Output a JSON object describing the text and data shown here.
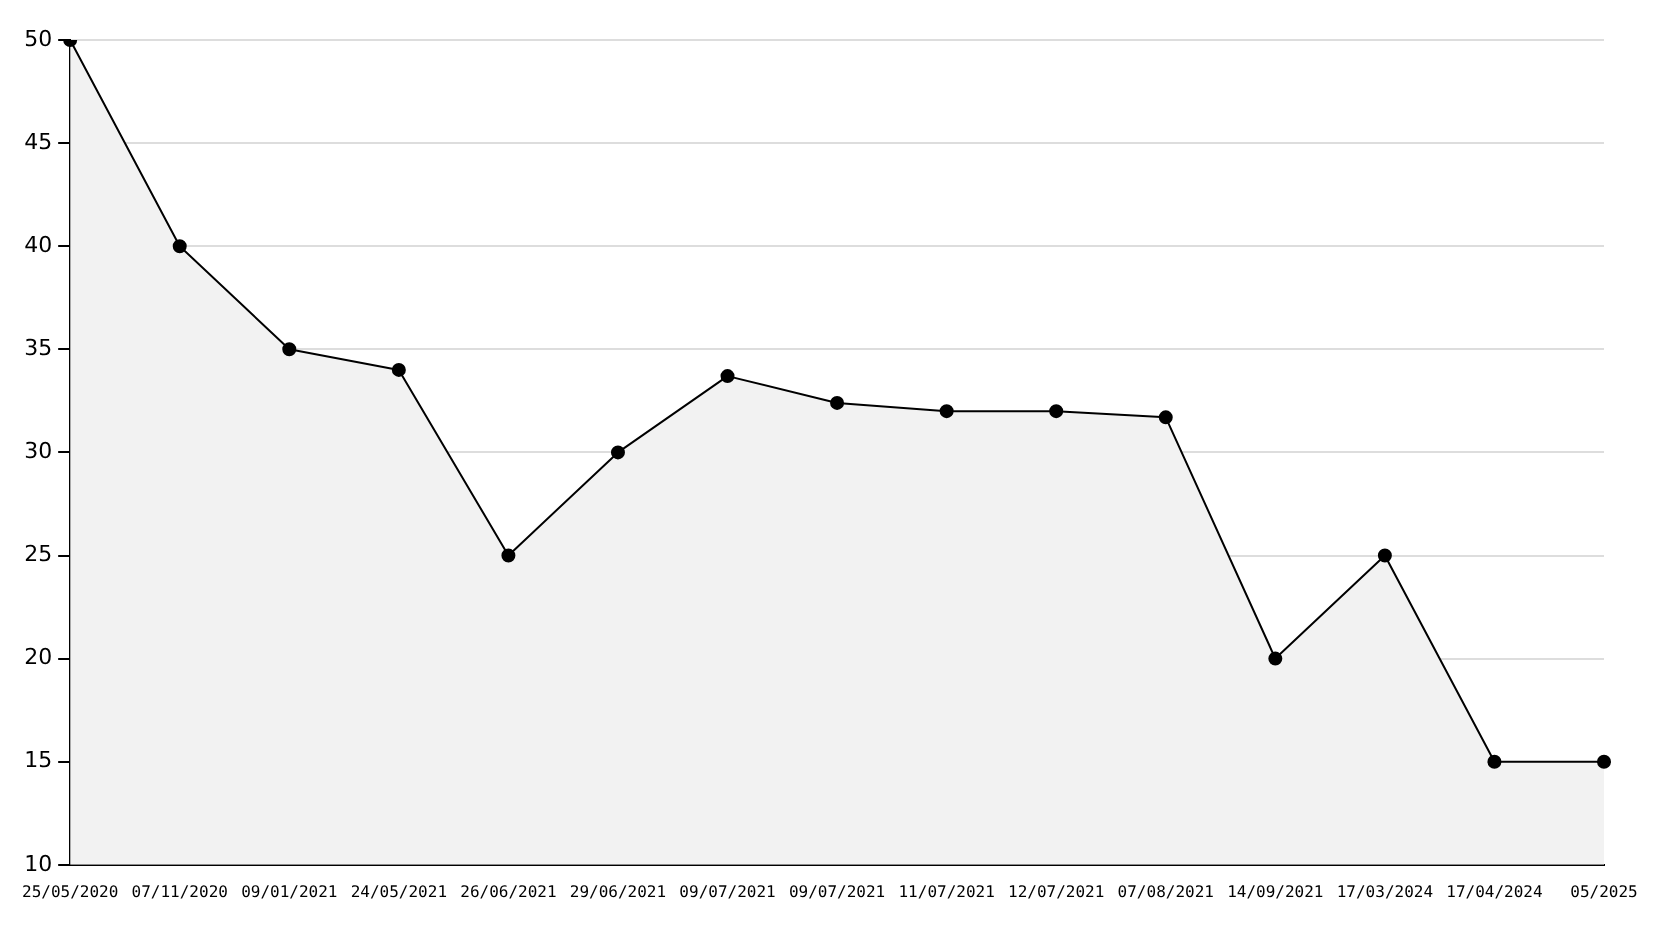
{
  "chart_data": {
    "type": "area",
    "categories": [
      "25/05/2020",
      "07/11/2020",
      "09/01/2021",
      "24/05/2021",
      "26/06/2021",
      "29/06/2021",
      "09/07/2021",
      "09/07/2021",
      "11/07/2021",
      "12/07/2021",
      "07/08/2021",
      "14/09/2021",
      "17/03/2024",
      "17/04/2024",
      "05/2025"
    ],
    "series": [
      {
        "color": "#000000",
        "values": [
          50,
          40,
          35,
          34,
          25,
          30,
          33.7,
          32.4,
          32,
          32,
          31.7,
          20,
          25,
          15,
          15
        ]
      }
    ],
    "ylim": [
      10,
      50
    ],
    "yticks": [
      10,
      15,
      20,
      25,
      30,
      35,
      40,
      45,
      50
    ],
    "grid": "y",
    "marker": "circle",
    "line_style": "solid",
    "legend": false
  }
}
